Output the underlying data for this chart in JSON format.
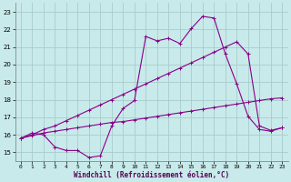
{
  "xlabel": "Windchill (Refroidissement éolien,°C)",
  "xlim": [
    -0.5,
    23.5
  ],
  "ylim": [
    14.5,
    23.5
  ],
  "yticks": [
    15,
    16,
    17,
    18,
    19,
    20,
    21,
    22,
    23
  ],
  "xticks": [
    0,
    1,
    2,
    3,
    4,
    5,
    6,
    7,
    8,
    9,
    10,
    11,
    12,
    13,
    14,
    15,
    16,
    17,
    18,
    19,
    20,
    21,
    22,
    23
  ],
  "background_color": "#c8eaea",
  "grid_color": "#a8cccc",
  "line_color": "#880088",
  "line1_y": [
    15.8,
    16.1,
    16.0,
    15.3,
    15.1,
    15.1,
    14.7,
    14.8,
    16.5,
    17.5,
    17.95,
    21.6,
    21.35,
    21.5,
    21.2,
    22.05,
    22.75,
    22.65,
    20.6,
    18.9,
    17.05,
    16.3,
    16.2,
    16.4
  ],
  "line2_y": [
    15.8,
    16.0,
    16.3,
    16.5,
    16.8,
    17.1,
    17.4,
    17.7,
    18.0,
    18.3,
    18.6,
    18.9,
    19.2,
    19.5,
    19.8,
    20.1,
    20.4,
    20.7,
    21.0,
    21.3,
    20.6,
    16.5,
    16.25,
    16.4
  ],
  "line3_y": [
    15.8,
    15.95,
    16.1,
    16.2,
    16.3,
    16.4,
    16.5,
    16.6,
    16.7,
    16.75,
    16.85,
    16.95,
    17.05,
    17.15,
    17.25,
    17.35,
    17.45,
    17.55,
    17.65,
    17.75,
    17.85,
    17.95,
    18.05,
    18.1
  ]
}
